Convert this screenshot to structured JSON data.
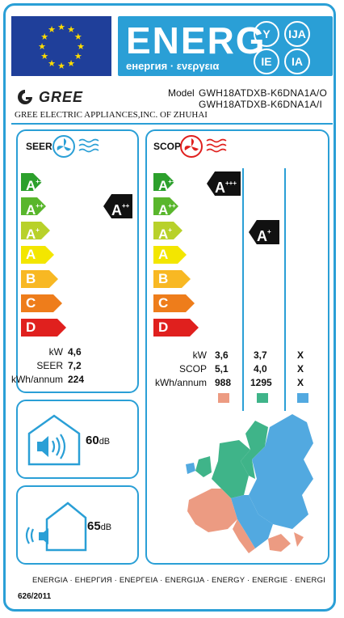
{
  "header": {
    "energ": "ENERG",
    "subtitle": "енергия · ενεργεια",
    "suffixes": [
      "Y",
      "IJA",
      "IE",
      "IA"
    ]
  },
  "brand": {
    "name": "GREE",
    "company": "GREE ELECTRIC APPLIANCES,INC. OF ZHUHAI"
  },
  "model": {
    "label": "Model",
    "outdoor": "GWH18ATDXB-K6DNA1A/O",
    "indoor": "GWH18ATDXB-K6DNA1A/I"
  },
  "scale_classes": [
    {
      "letter": "A",
      "sup": "+++",
      "color": "#2ca02c"
    },
    {
      "letter": "A",
      "sup": "++",
      "color": "#59b62c"
    },
    {
      "letter": "A",
      "sup": "+",
      "color": "#b8d12a"
    },
    {
      "letter": "A",
      "sup": "",
      "color": "#f3e600"
    },
    {
      "letter": "B",
      "sup": "",
      "color": "#f8b823"
    },
    {
      "letter": "C",
      "sup": "",
      "color": "#ee7d1b"
    },
    {
      "letter": "D",
      "sup": "",
      "color": "#e0201e"
    }
  ],
  "cooling": {
    "label": "SEER",
    "class_letter": "A",
    "class_sup": "++",
    "rows": [
      {
        "label": "kW",
        "value": "4,6"
      },
      {
        "label": "SEER",
        "value": "7,2"
      },
      {
        "label": "kWh/annum",
        "value": "224"
      }
    ]
  },
  "heating": {
    "label": "SCOP",
    "warmer": {
      "class_letter": "A",
      "class_sup": "+++"
    },
    "average": {
      "class_letter": "A",
      "class_sup": "+"
    },
    "row_labels": [
      "kW",
      "SCOP",
      "kWh/annum"
    ],
    "warmer_values": [
      "3,6",
      "5,1",
      "988"
    ],
    "average_values": [
      "3,7",
      "4,0",
      "1295"
    ],
    "colder_values": [
      "X",
      "X",
      "X"
    ],
    "zone_colors": {
      "warmer": "#ec9b82",
      "average": "#3fb489",
      "colder": "#52a9e0"
    }
  },
  "noise": {
    "indoor_value": "60",
    "outdoor_value": "65",
    "unit": "dB"
  },
  "footer": {
    "languages": "ENERGIA · ЕНЕРГИЯ · ΕΝΕΡΓΕΙΑ · ENERGIJA · ENERGY · ENERGIE · ENERGI",
    "regulation": "626/2011"
  }
}
